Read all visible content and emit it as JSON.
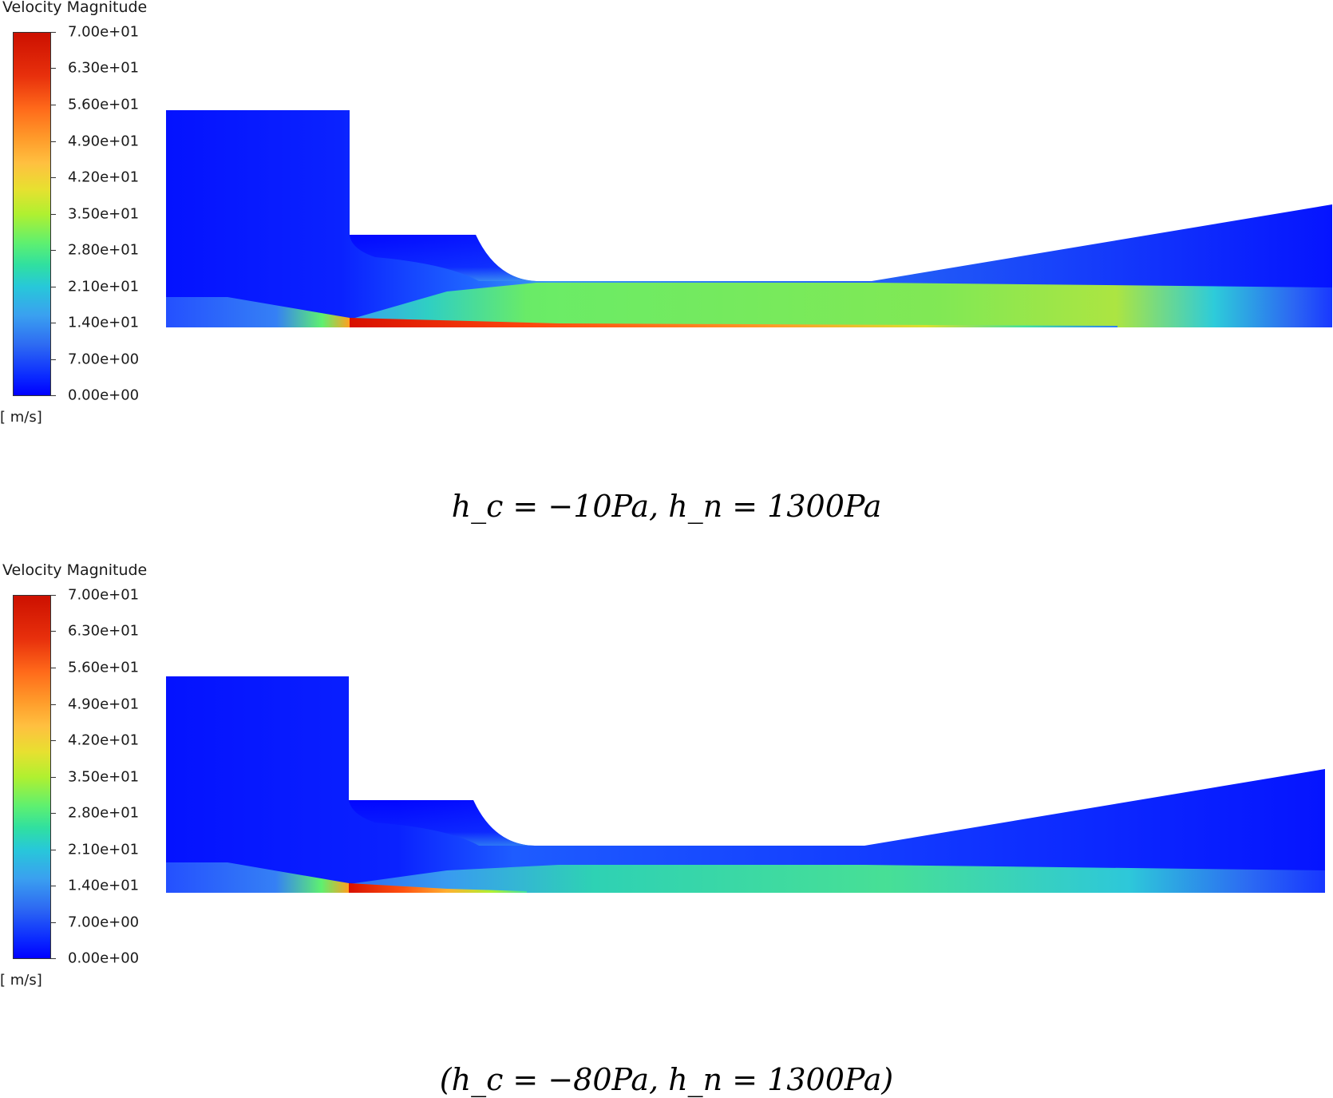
{
  "panels": [
    {
      "legend_title": "Velocity Magnitude",
      "unit": "[ m/s]",
      "ticks": [
        "7.00e+01",
        "6.30e+01",
        "5.60e+01",
        "4.90e+01",
        "4.20e+01",
        "3.50e+01",
        "2.80e+01",
        "2.10e+01",
        "1.40e+01",
        "7.00e+00",
        "0.00e+00"
      ],
      "caption": "h_c = −10Pa, h_n = 1300Pa"
    },
    {
      "legend_title": "Velocity Magnitude",
      "unit": "[ m/s]",
      "ticks": [
        "7.00e+01",
        "6.30e+01",
        "5.60e+01",
        "4.90e+01",
        "4.20e+01",
        "3.50e+01",
        "2.80e+01",
        "2.10e+01",
        "1.40e+01",
        "7.00e+00",
        "0.00e+00"
      ],
      "caption": "(h_c = −80Pa, h_n = 1300Pa)"
    }
  ],
  "colors": {
    "min": "#0000ff",
    "max": "#cc1000"
  }
}
